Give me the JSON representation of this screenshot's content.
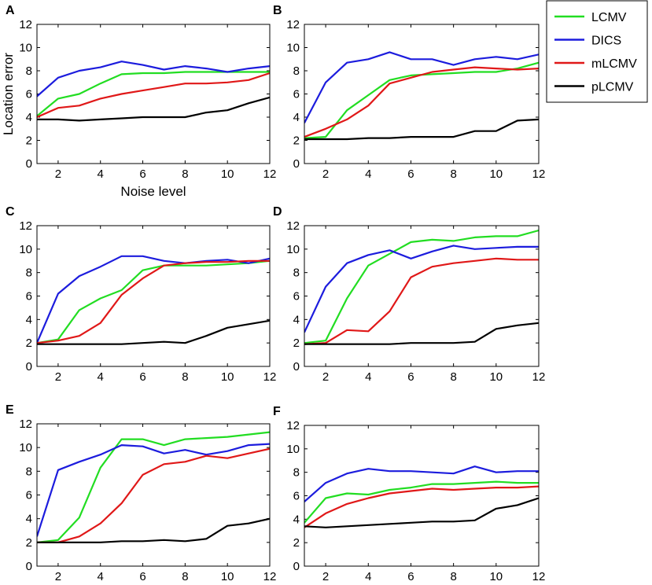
{
  "legend": {
    "entries": [
      {
        "name": "LCMV",
        "color": "#22dd22"
      },
      {
        "name": "DICS",
        "color": "#1c1cdd"
      },
      {
        "name": "mLCMV",
        "color": "#e01818"
      },
      {
        "name": "pLCMV",
        "color": "#000000"
      }
    ]
  },
  "chart_data": [
    {
      "type": "line",
      "panel": "A",
      "xlabel": "Noise level",
      "ylabel": "Location error",
      "xlim": [
        1,
        12
      ],
      "ylim": [
        0,
        12
      ],
      "xticks": [
        2,
        4,
        6,
        8,
        10,
        12
      ],
      "yticks": [
        0,
        2,
        4,
        6,
        8,
        10,
        12
      ],
      "x": [
        1,
        2,
        3,
        4,
        5,
        6,
        7,
        8,
        9,
        10,
        11,
        12
      ],
      "series": [
        {
          "name": "LCMV",
          "values": [
            4.1,
            5.6,
            6.0,
            6.9,
            7.7,
            7.8,
            7.8,
            7.9,
            7.9,
            7.9,
            7.9,
            7.9
          ]
        },
        {
          "name": "DICS",
          "values": [
            5.8,
            7.4,
            8.0,
            8.3,
            8.8,
            8.5,
            8.1,
            8.4,
            8.2,
            7.9,
            8.2,
            8.4
          ]
        },
        {
          "name": "mLCMV",
          "values": [
            4.0,
            4.8,
            5.0,
            5.6,
            6.0,
            6.3,
            6.6,
            6.9,
            6.9,
            7.0,
            7.2,
            7.8
          ]
        },
        {
          "name": "pLCMV",
          "values": [
            3.8,
            3.8,
            3.7,
            3.8,
            3.9,
            4.0,
            4.0,
            4.0,
            4.4,
            4.6,
            5.2,
            5.7
          ]
        }
      ]
    },
    {
      "type": "line",
      "panel": "B",
      "xlabel": "",
      "ylabel": "",
      "xlim": [
        1,
        12
      ],
      "ylim": [
        0,
        12
      ],
      "xticks": [
        2,
        4,
        6,
        8,
        10,
        12
      ],
      "yticks": [
        0,
        2,
        4,
        6,
        8,
        10,
        12
      ],
      "x": [
        1,
        2,
        3,
        4,
        5,
        6,
        7,
        8,
        9,
        10,
        11,
        12
      ],
      "series": [
        {
          "name": "LCMV",
          "values": [
            2.2,
            2.3,
            4.6,
            5.9,
            7.2,
            7.6,
            7.7,
            7.8,
            7.9,
            7.9,
            8.2,
            8.7
          ]
        },
        {
          "name": "DICS",
          "values": [
            3.5,
            7.0,
            8.7,
            9.0,
            9.6,
            9.0,
            9.0,
            8.5,
            9.0,
            9.2,
            9.0,
            9.4
          ]
        },
        {
          "name": "mLCMV",
          "values": [
            2.3,
            3.0,
            3.8,
            5.0,
            6.9,
            7.4,
            7.9,
            8.1,
            8.3,
            8.2,
            8.1,
            8.2
          ]
        },
        {
          "name": "pLCMV",
          "values": [
            2.1,
            2.1,
            2.1,
            2.2,
            2.2,
            2.3,
            2.3,
            2.3,
            2.8,
            2.8,
            3.7,
            3.8
          ]
        }
      ]
    },
    {
      "type": "line",
      "panel": "C",
      "xlabel": "",
      "ylabel": "",
      "xlim": [
        1,
        12
      ],
      "ylim": [
        0,
        12
      ],
      "xticks": [
        2,
        4,
        6,
        8,
        10,
        12
      ],
      "yticks": [
        0,
        2,
        4,
        6,
        8,
        10,
        12
      ],
      "x": [
        1,
        2,
        3,
        4,
        5,
        6,
        7,
        8,
        9,
        10,
        11,
        12
      ],
      "series": [
        {
          "name": "LCMV",
          "values": [
            2.0,
            2.3,
            4.8,
            5.8,
            6.5,
            8.2,
            8.6,
            8.6,
            8.6,
            8.7,
            8.8,
            9.0
          ]
        },
        {
          "name": "DICS",
          "values": [
            2.0,
            6.2,
            7.7,
            8.5,
            9.4,
            9.4,
            9.0,
            8.8,
            9.0,
            9.1,
            8.8,
            9.2
          ]
        },
        {
          "name": "mLCMV",
          "values": [
            2.0,
            2.2,
            2.6,
            3.7,
            6.1,
            7.5,
            8.6,
            8.8,
            8.9,
            8.9,
            9.0,
            9.0
          ]
        },
        {
          "name": "pLCMV",
          "values": [
            1.9,
            1.9,
            1.9,
            1.9,
            1.9,
            2.0,
            2.1,
            2.0,
            2.6,
            3.3,
            3.6,
            3.9
          ]
        }
      ]
    },
    {
      "type": "line",
      "panel": "D",
      "xlabel": "",
      "ylabel": "",
      "xlim": [
        1,
        12
      ],
      "ylim": [
        0,
        12
      ],
      "xticks": [
        2,
        4,
        6,
        8,
        10,
        12
      ],
      "yticks": [
        0,
        2,
        4,
        6,
        8,
        10,
        12
      ],
      "x": [
        1,
        2,
        3,
        4,
        5,
        6,
        7,
        8,
        9,
        10,
        11,
        12
      ],
      "series": [
        {
          "name": "LCMV",
          "values": [
            2.0,
            2.2,
            5.8,
            8.6,
            9.6,
            10.6,
            10.8,
            10.7,
            11.0,
            11.1,
            11.1,
            11.6
          ]
        },
        {
          "name": "DICS",
          "values": [
            2.9,
            6.8,
            8.8,
            9.5,
            9.9,
            9.2,
            9.8,
            10.3,
            10.0,
            10.1,
            10.2,
            10.2
          ]
        },
        {
          "name": "mLCMV",
          "values": [
            1.9,
            2.0,
            3.1,
            3.0,
            4.7,
            7.6,
            8.5,
            8.8,
            9.0,
            9.2,
            9.1,
            9.1
          ]
        },
        {
          "name": "pLCMV",
          "values": [
            1.9,
            1.9,
            1.9,
            1.9,
            1.9,
            2.0,
            2.0,
            2.0,
            2.1,
            3.2,
            3.5,
            3.7
          ]
        }
      ]
    },
    {
      "type": "line",
      "panel": "E",
      "xlabel": "",
      "ylabel": "",
      "xlim": [
        1,
        12
      ],
      "ylim": [
        0,
        12
      ],
      "xticks": [
        2,
        4,
        6,
        8,
        10,
        12
      ],
      "yticks": [
        0,
        2,
        4,
        6,
        8,
        10,
        12
      ],
      "x": [
        1,
        2,
        3,
        4,
        5,
        6,
        7,
        8,
        9,
        10,
        11,
        12
      ],
      "series": [
        {
          "name": "LCMV",
          "values": [
            2.0,
            2.2,
            4.1,
            8.3,
            10.7,
            10.7,
            10.2,
            10.7,
            10.8,
            10.9,
            11.1,
            11.3
          ]
        },
        {
          "name": "DICS",
          "values": [
            2.5,
            8.1,
            8.8,
            9.4,
            10.2,
            10.1,
            9.5,
            9.8,
            9.4,
            9.7,
            10.2,
            10.3
          ]
        },
        {
          "name": "mLCMV",
          "values": [
            2.0,
            2.0,
            2.5,
            3.6,
            5.3,
            7.7,
            8.6,
            8.8,
            9.3,
            9.1,
            9.5,
            9.9
          ]
        },
        {
          "name": "pLCMV",
          "values": [
            2.0,
            2.0,
            2.0,
            2.0,
            2.1,
            2.1,
            2.2,
            2.1,
            2.3,
            3.4,
            3.6,
            4.0
          ]
        }
      ]
    },
    {
      "type": "line",
      "panel": "F",
      "xlabel": "",
      "ylabel": "",
      "xlim": [
        1,
        12
      ],
      "ylim": [
        0,
        12
      ],
      "xticks": [
        2,
        4,
        6,
        8,
        10,
        12
      ],
      "yticks": [
        0,
        2,
        4,
        6,
        8,
        10,
        12
      ],
      "x": [
        1,
        2,
        3,
        4,
        5,
        6,
        7,
        8,
        9,
        10,
        11,
        12
      ],
      "series": [
        {
          "name": "LCMV",
          "values": [
            3.7,
            5.8,
            6.2,
            6.1,
            6.5,
            6.7,
            7.0,
            7.0,
            7.1,
            7.2,
            7.1,
            7.1
          ]
        },
        {
          "name": "DICS",
          "values": [
            5.5,
            7.1,
            7.9,
            8.3,
            8.1,
            8.1,
            8.0,
            7.9,
            8.5,
            8.0,
            8.1,
            8.1
          ]
        },
        {
          "name": "mLCMV",
          "values": [
            3.3,
            4.5,
            5.3,
            5.8,
            6.2,
            6.4,
            6.6,
            6.5,
            6.6,
            6.7,
            6.7,
            6.8
          ]
        },
        {
          "name": "pLCMV",
          "values": [
            3.4,
            3.3,
            3.4,
            3.5,
            3.6,
            3.7,
            3.8,
            3.8,
            3.9,
            4.9,
            5.2,
            5.8
          ]
        }
      ]
    }
  ]
}
